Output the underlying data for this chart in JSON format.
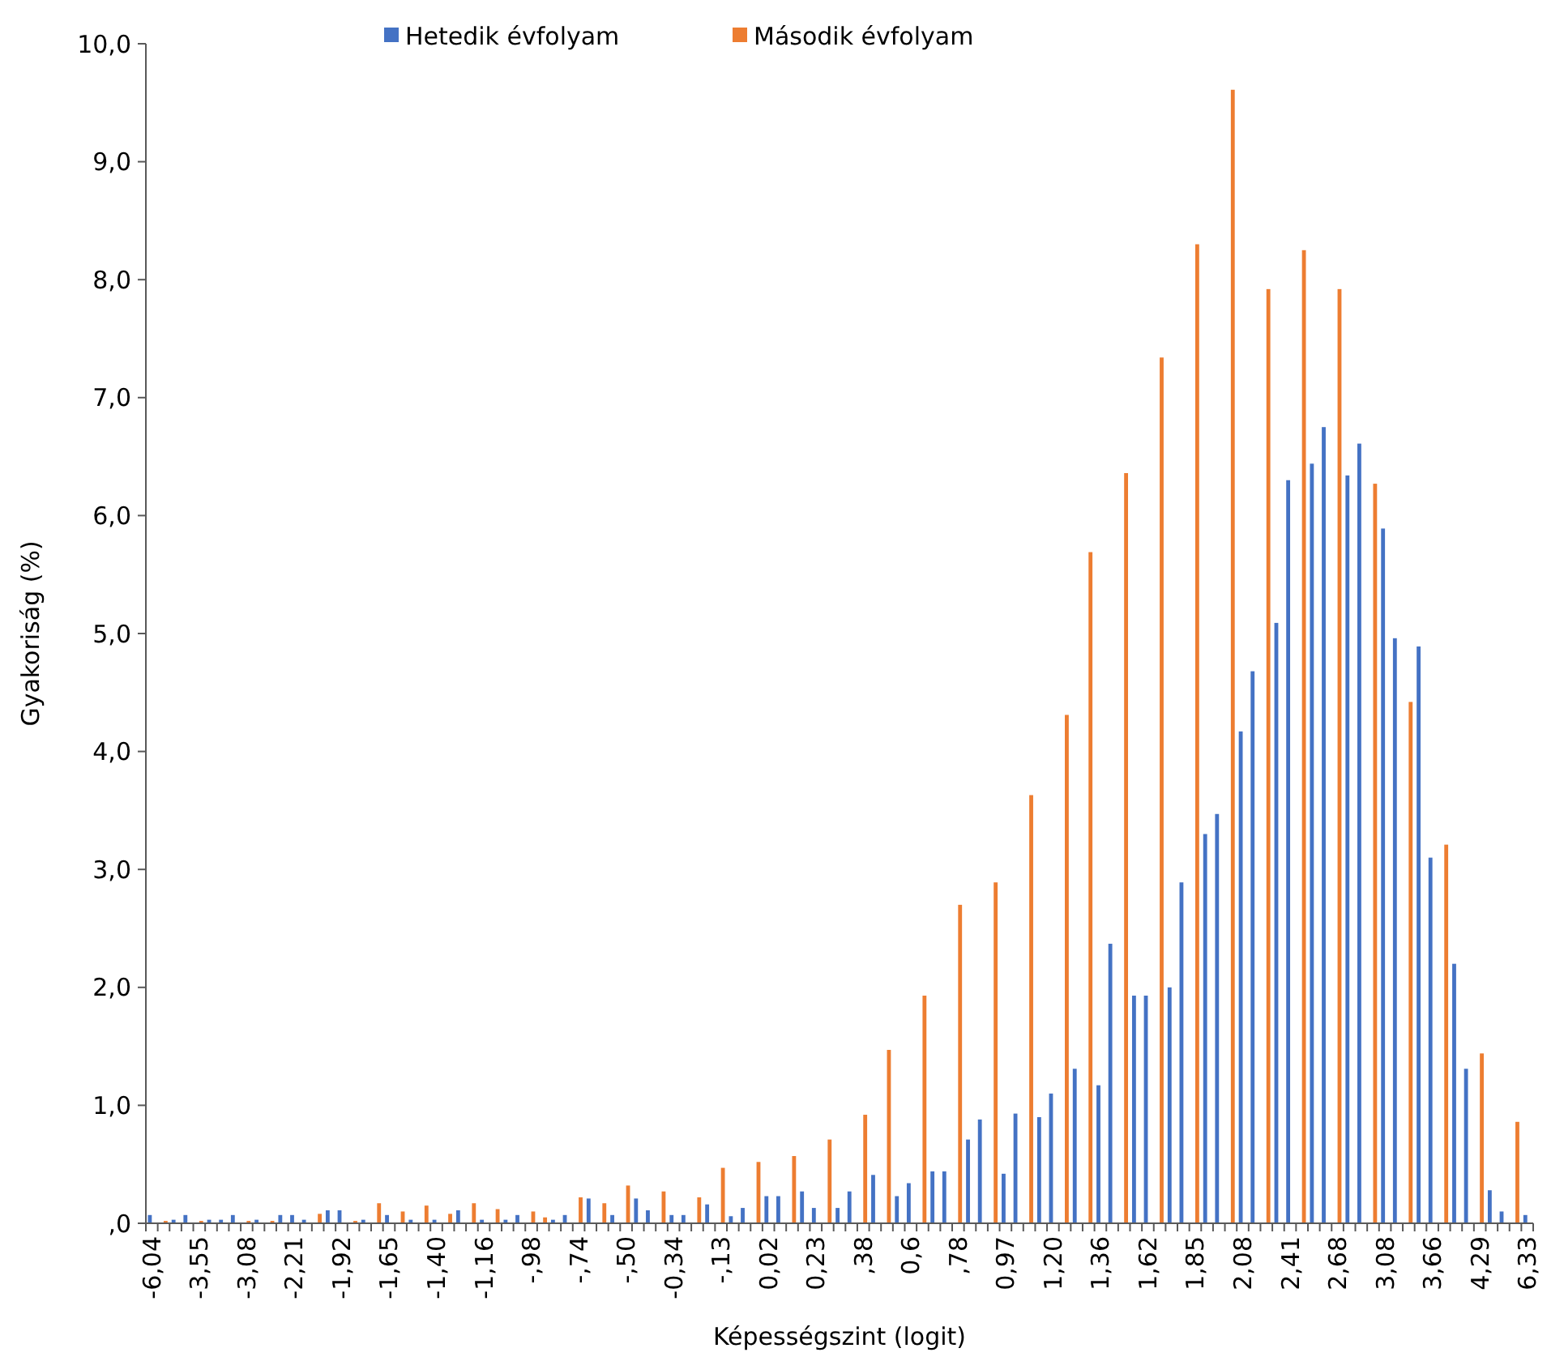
{
  "chart_data": {
    "type": "bar",
    "xlabel": "Képességszint (logit)",
    "ylabel": "Gyakoriság (%)",
    "legend": "top",
    "categories": [
      "-6,04",
      null,
      null,
      null,
      "-3,55",
      null,
      null,
      null,
      "-3,08",
      null,
      null,
      null,
      "-2,21",
      null,
      null,
      null,
      "-1,92",
      null,
      null,
      null,
      "-1,65",
      null,
      null,
      null,
      "-1,40",
      null,
      null,
      null,
      "-1,16",
      null,
      null,
      null,
      "-,98",
      null,
      null,
      null,
      "-,74",
      null,
      null,
      null,
      "-,50",
      null,
      null,
      null,
      "-0,34",
      null,
      null,
      null,
      "-,13",
      null,
      null,
      null,
      "0,02",
      null,
      null,
      null,
      "0,23",
      null,
      null,
      null,
      ",38",
      null,
      null,
      null,
      "0,6",
      null,
      null,
      null,
      ",78",
      null,
      null,
      null,
      "0,97",
      null,
      null,
      null,
      "1,20",
      null,
      null,
      null,
      "1,36",
      null,
      null,
      null,
      "1,62",
      null,
      null,
      null,
      "1,85",
      null,
      null,
      null,
      "2,08",
      null,
      null,
      null,
      "2,41",
      null,
      null,
      null,
      "2,68",
      null,
      null,
      null,
      "3,08",
      null,
      null,
      null,
      "3,66",
      null,
      null,
      null,
      "4,29",
      null,
      null,
      null,
      "6,33"
    ],
    "ylim": [
      0,
      10
    ],
    "yticks": [
      {
        "value": 0,
        "label": ",0"
      },
      {
        "value": 1,
        "label": "1,0"
      },
      {
        "value": 2,
        "label": "2,0"
      },
      {
        "value": 3,
        "label": "3,0"
      },
      {
        "value": 4,
        "label": "4,0"
      },
      {
        "value": 5,
        "label": "5,0"
      },
      {
        "value": 6,
        "label": "6,0"
      },
      {
        "value": 7,
        "label": "7,0"
      },
      {
        "value": 8,
        "label": "8,0"
      },
      {
        "value": 9,
        "label": "9,0"
      },
      {
        "value": 10,
        "label": "10,0"
      }
    ],
    "series": [
      {
        "name": "Hetedik évfolyam",
        "color": "#4472c4",
        "values": [
          0.07,
          null,
          0.03,
          0.07,
          null,
          0.03,
          0.03,
          0.07,
          null,
          0.03,
          null,
          0.07,
          0.07,
          0.03,
          null,
          0.11,
          0.11,
          null,
          0.03,
          null,
          0.07,
          null,
          0.03,
          null,
          0.03,
          null,
          0.11,
          null,
          0.03,
          null,
          0.03,
          0.07,
          null,
          null,
          0.03,
          0.07,
          null,
          0.21,
          null,
          0.07,
          null,
          0.21,
          0.11,
          null,
          0.07,
          0.07,
          null,
          0.16,
          null,
          0.06,
          0.13,
          null,
          0.23,
          0.23,
          null,
          0.27,
          0.13,
          null,
          0.13,
          0.27,
          null,
          0.41,
          null,
          0.23,
          0.34,
          null,
          0.44,
          0.44,
          null,
          0.71,
          0.88,
          null,
          0.42,
          0.93,
          null,
          0.9,
          1.1,
          null,
          1.31,
          null,
          1.17,
          2.37,
          null,
          1.93,
          1.93,
          null,
          2.0,
          2.89,
          null,
          3.3,
          3.47,
          null,
          4.17,
          4.68,
          null,
          5.09,
          6.3,
          null,
          6.44,
          6.75,
          null,
          6.34,
          6.61,
          null,
          5.89,
          4.96,
          null,
          4.89,
          3.1,
          null,
          2.2,
          1.31,
          null,
          0.28,
          0.1,
          null,
          0.07
        ]
      },
      {
        "name": "Második évfolyam",
        "color": "#ed7d31",
        "values": [
          null,
          0.02,
          null,
          null,
          0.02,
          null,
          null,
          null,
          0.02,
          null,
          0.02,
          null,
          null,
          null,
          0.08,
          null,
          null,
          0.02,
          null,
          0.17,
          null,
          0.1,
          null,
          0.15,
          null,
          0.08,
          null,
          0.17,
          null,
          0.12,
          null,
          null,
          0.1,
          0.05,
          null,
          null,
          0.22,
          null,
          0.17,
          null,
          0.32,
          null,
          null,
          0.27,
          null,
          null,
          0.22,
          null,
          0.47,
          null,
          null,
          0.52,
          null,
          null,
          0.57,
          null,
          null,
          0.71,
          null,
          null,
          0.92,
          null,
          1.47,
          null,
          null,
          1.93,
          null,
          null,
          2.7,
          null,
          null,
          2.89,
          null,
          null,
          3.63,
          null,
          null,
          4.31,
          null,
          5.69,
          null,
          null,
          6.36,
          null,
          null,
          7.34,
          null,
          null,
          8.3,
          null,
          null,
          9.61,
          null,
          null,
          7.92,
          null,
          null,
          8.25,
          null,
          null,
          7.92,
          null,
          null,
          6.27,
          null,
          null,
          4.42,
          null,
          null,
          3.21,
          null,
          null,
          1.44,
          null,
          null,
          0.86,
          null
        ]
      }
    ]
  }
}
